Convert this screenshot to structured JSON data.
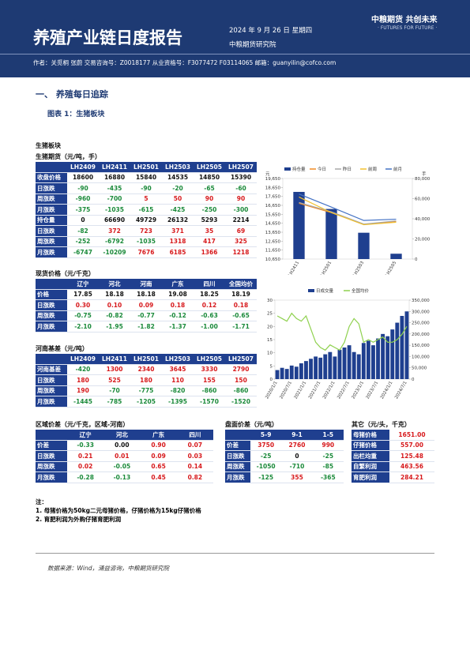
{
  "header": {
    "title": "养殖产业链日度报告",
    "date": "2024 年 9 月 26 日 星期四",
    "institute": "中粮期货研究院",
    "logo": "中粮期货  共创未来",
    "slogan": "· FUTURES FOR FUTURE ·",
    "authors": "作者：关觅桐  张蔚  交易咨询号：Z0018177 从业资格号：F3077472 F03114065  邮箱：guanyilin@cofco.com"
  },
  "section": "一、  养殖每日追踪",
  "figure_title": "图表 1：生猪板块",
  "block_title": "生猪板块",
  "tables": {
    "futures": {
      "title": "生猪期货（元/吨，手）",
      "plain_rows": [
        0,
        4
      ],
      "headers": [
        "LH2409",
        "LH2411",
        "LH2501",
        "LH2503",
        "LH2505",
        "LH2507"
      ],
      "rows": [
        [
          "收盘价格",
          "18600",
          "16880",
          "15840",
          "14535",
          "14850",
          "15390"
        ],
        [
          "日涨跌",
          "-90",
          "-435",
          "-90",
          "-20",
          "-65",
          "-60"
        ],
        [
          "周涨跌",
          "-960",
          "-700",
          "5",
          "50",
          "90",
          "90"
        ],
        [
          "月涨跌",
          "-375",
          "-1035",
          "-615",
          "-425",
          "-250",
          "-300"
        ],
        [
          "持仓量",
          "0",
          "66690",
          "49729",
          "26132",
          "5293",
          "2214"
        ],
        [
          "日涨跌",
          "-82",
          "372",
          "723",
          "371",
          "35",
          "69"
        ],
        [
          "周涨跌",
          "-252",
          "-6792",
          "-1035",
          "1318",
          "417",
          "325"
        ],
        [
          "月涨跌",
          "-6747",
          "-10209",
          "7676",
          "6185",
          "1366",
          "1218"
        ]
      ]
    },
    "spot": {
      "title": "现货价格（元/千克）",
      "plain_rows": [
        0
      ],
      "headers": [
        "辽宁",
        "河北",
        "河南",
        "广东",
        "四川",
        "全国均价"
      ],
      "rows": [
        [
          "价格",
          "17.85",
          "18.18",
          "18.18",
          "19.08",
          "18.25",
          "18.19"
        ],
        [
          "日涨跌",
          "0.30",
          "0.10",
          "0.09",
          "0.18",
          "0.12",
          "0.18"
        ],
        [
          "周涨跌",
          "-0.75",
          "-0.82",
          "-0.77",
          "-0.12",
          "-0.63",
          "-0.65"
        ],
        [
          "月涨跌",
          "-2.10",
          "-1.95",
          "-1.82",
          "-1.37",
          "-1.00",
          "-1.71"
        ]
      ]
    },
    "basis": {
      "title": "河南基差（元/吨）",
      "plain_rows": [],
      "headers": [
        "LH2409",
        "LH2411",
        "LH2501",
        "LH2503",
        "LH2505",
        "LH2507"
      ],
      "rows": [
        [
          "河南基差",
          "-420",
          "1300",
          "2340",
          "3645",
          "3330",
          "2790"
        ],
        [
          "日涨跌",
          "180",
          "525",
          "180",
          "110",
          "155",
          "150"
        ],
        [
          "周涨跌",
          "190",
          "-70",
          "-775",
          "-820",
          "-860",
          "-860"
        ],
        [
          "月涨跌",
          "-1445",
          "-785",
          "-1205",
          "-1395",
          "-1570",
          "-1520"
        ]
      ]
    },
    "regional": {
      "title": "区域价差（元/千克，区域-河南）",
      "plain_rows": [],
      "headers": [
        "辽宁",
        "河北",
        "广东",
        "四川"
      ],
      "rows": [
        [
          "价差",
          "-0.33",
          "0.00",
          "0.90",
          "0.07"
        ],
        [
          "日涨跌",
          "0.21",
          "0.01",
          "0.09",
          "0.03"
        ],
        [
          "周涨跌",
          "0.02",
          "-0.05",
          "0.65",
          "0.14"
        ],
        [
          "月涨跌",
          "-0.28",
          "-0.13",
          "0.45",
          "0.82"
        ]
      ]
    },
    "spread": {
      "title": "盘面价差（元/吨）",
      "plain_rows": [],
      "headers": [
        "5-9",
        "9-1",
        "1-5"
      ],
      "rows": [
        [
          "价差",
          "3750",
          "2760",
          "990"
        ],
        [
          "日涨跌",
          "-25",
          "0",
          "-25"
        ],
        [
          "周涨跌",
          "-1050",
          "-710",
          "-85"
        ],
        [
          "月涨跌",
          "-125",
          "355",
          "-365"
        ]
      ]
    },
    "other": {
      "title": "其它（元/头，千克）",
      "plain_rows": [],
      "headers": [],
      "rows": [
        [
          "母猪价格",
          "1651.00"
        ],
        [
          "仔猪价格",
          "557.00"
        ],
        [
          "出栏均重",
          "125.48"
        ],
        [
          "自繁利润",
          "463.56"
        ],
        [
          "育肥利润",
          "284.21"
        ]
      ]
    }
  },
  "charts": [
    {
      "type": "bar_line",
      "y_label": "元",
      "y2_label": "手",
      "categories": [
        "LH2411",
        "LH2501",
        "LH2503",
        "LH2505"
      ],
      "ylim": [
        10650,
        19650
      ],
      "yticks": [
        {
          "value": 10650,
          "label": "10,650"
        },
        {
          "value": 11650,
          "label": "11,650"
        },
        {
          "value": 12650,
          "label": "12,650"
        },
        {
          "value": 13650,
          "label": "13,650"
        },
        {
          "value": 14650,
          "label": "14,650"
        },
        {
          "value": 15650,
          "label": "15,650"
        },
        {
          "value": 16650,
          "label": "16,650"
        },
        {
          "value": 17650,
          "label": "17,650"
        },
        {
          "value": 18650,
          "label": "18,650"
        },
        {
          "value": 19650,
          "label": "19,650"
        }
      ],
      "y2lim": [
        0,
        80000
      ],
      "y2ticks": [
        0,
        {
          "value": 20000,
          "label": "20,000"
        },
        {
          "value": 40000,
          "label": "40,000"
        },
        {
          "value": 60000,
          "label": "60,000"
        },
        {
          "value": 80000,
          "label": "80,000"
        }
      ],
      "series": [
        {
          "name": "持仓量",
          "kind": "bar",
          "axis": "y2",
          "color": "#1f3f8f",
          "values": [
            66690,
            49729,
            26132,
            5293
          ]
        },
        {
          "name": "今日",
          "kind": "line",
          "color": "#f08a24",
          "values": [
            16880,
            15840,
            14535,
            14850
          ]
        },
        {
          "name": "昨日",
          "kind": "line",
          "color": "#a8a8a8",
          "values": [
            16970,
            15930,
            14555,
            14915
          ]
        },
        {
          "name": "前周",
          "kind": "line",
          "color": "#f2c12e",
          "values": [
            17580,
            15835,
            14485,
            14760
          ]
        },
        {
          "name": "前月",
          "kind": "line",
          "color": "#4472c4",
          "values": [
            17915,
            16455,
            14960,
            15100
          ]
        }
      ]
    },
    {
      "type": "bar_line",
      "categories": [
        "2020/1/1",
        null,
        null,
        "2020/7/1",
        null,
        null,
        "2021/1/1",
        null,
        null,
        "2021/7/1",
        null,
        null,
        "2022/1/1",
        null,
        null,
        "2022/7/1",
        null,
        null,
        "2023/1/1",
        null,
        null,
        "2023/7/1",
        null,
        null,
        "2024/1/1",
        null,
        null,
        "2024/7/1"
      ],
      "ylim": [
        0,
        30
      ],
      "yticks": [
        0,
        5,
        10,
        15,
        20,
        25,
        30
      ],
      "y2lim": [
        0,
        350000
      ],
      "y2ticks": [
        0,
        {
          "value": 50000,
          "label": "50,000"
        },
        {
          "value": 100000,
          "label": "100,000"
        },
        {
          "value": 150000,
          "label": "150,000"
        },
        {
          "value": 200000,
          "label": "200,000"
        },
        {
          "value": 250000,
          "label": "250,000"
        },
        {
          "value": 300000,
          "label": "300,000"
        },
        {
          "value": 350000,
          "label": "350,000"
        }
      ],
      "series": [
        {
          "name": "日成交量",
          "kind": "bar",
          "axis": "y2",
          "color": "#1f3f8f",
          "values": [
            40000,
            50000,
            45000,
            60000,
            55000,
            70000,
            80000,
            90000,
            100000,
            95000,
            110000,
            120000,
            100000,
            130000,
            140000,
            150000,
            120000,
            110000,
            160000,
            170000,
            150000,
            180000,
            200000,
            190000,
            220000,
            250000,
            280000,
            300000
          ]
        },
        {
          "name": "全国均价",
          "kind": "line",
          "color": "#8fd14f",
          "values": [
            24,
            23,
            22,
            25,
            23,
            22,
            24,
            19,
            14,
            12,
            11,
            13,
            12,
            11,
            14,
            20,
            23,
            21,
            14,
            15,
            14,
            15,
            16,
            14,
            14,
            15,
            17,
            20
          ]
        }
      ]
    }
  ],
  "notes": {
    "title": "注：",
    "items": [
      "1. 母猪价格为50kg二元母猪价格，仔猪价格为15kg仔猪价格",
      "2. 育肥利润为外购仔猪育肥利润"
    ]
  },
  "source": "数据来源：Wind，涌益咨询，中粮期货研究院"
}
